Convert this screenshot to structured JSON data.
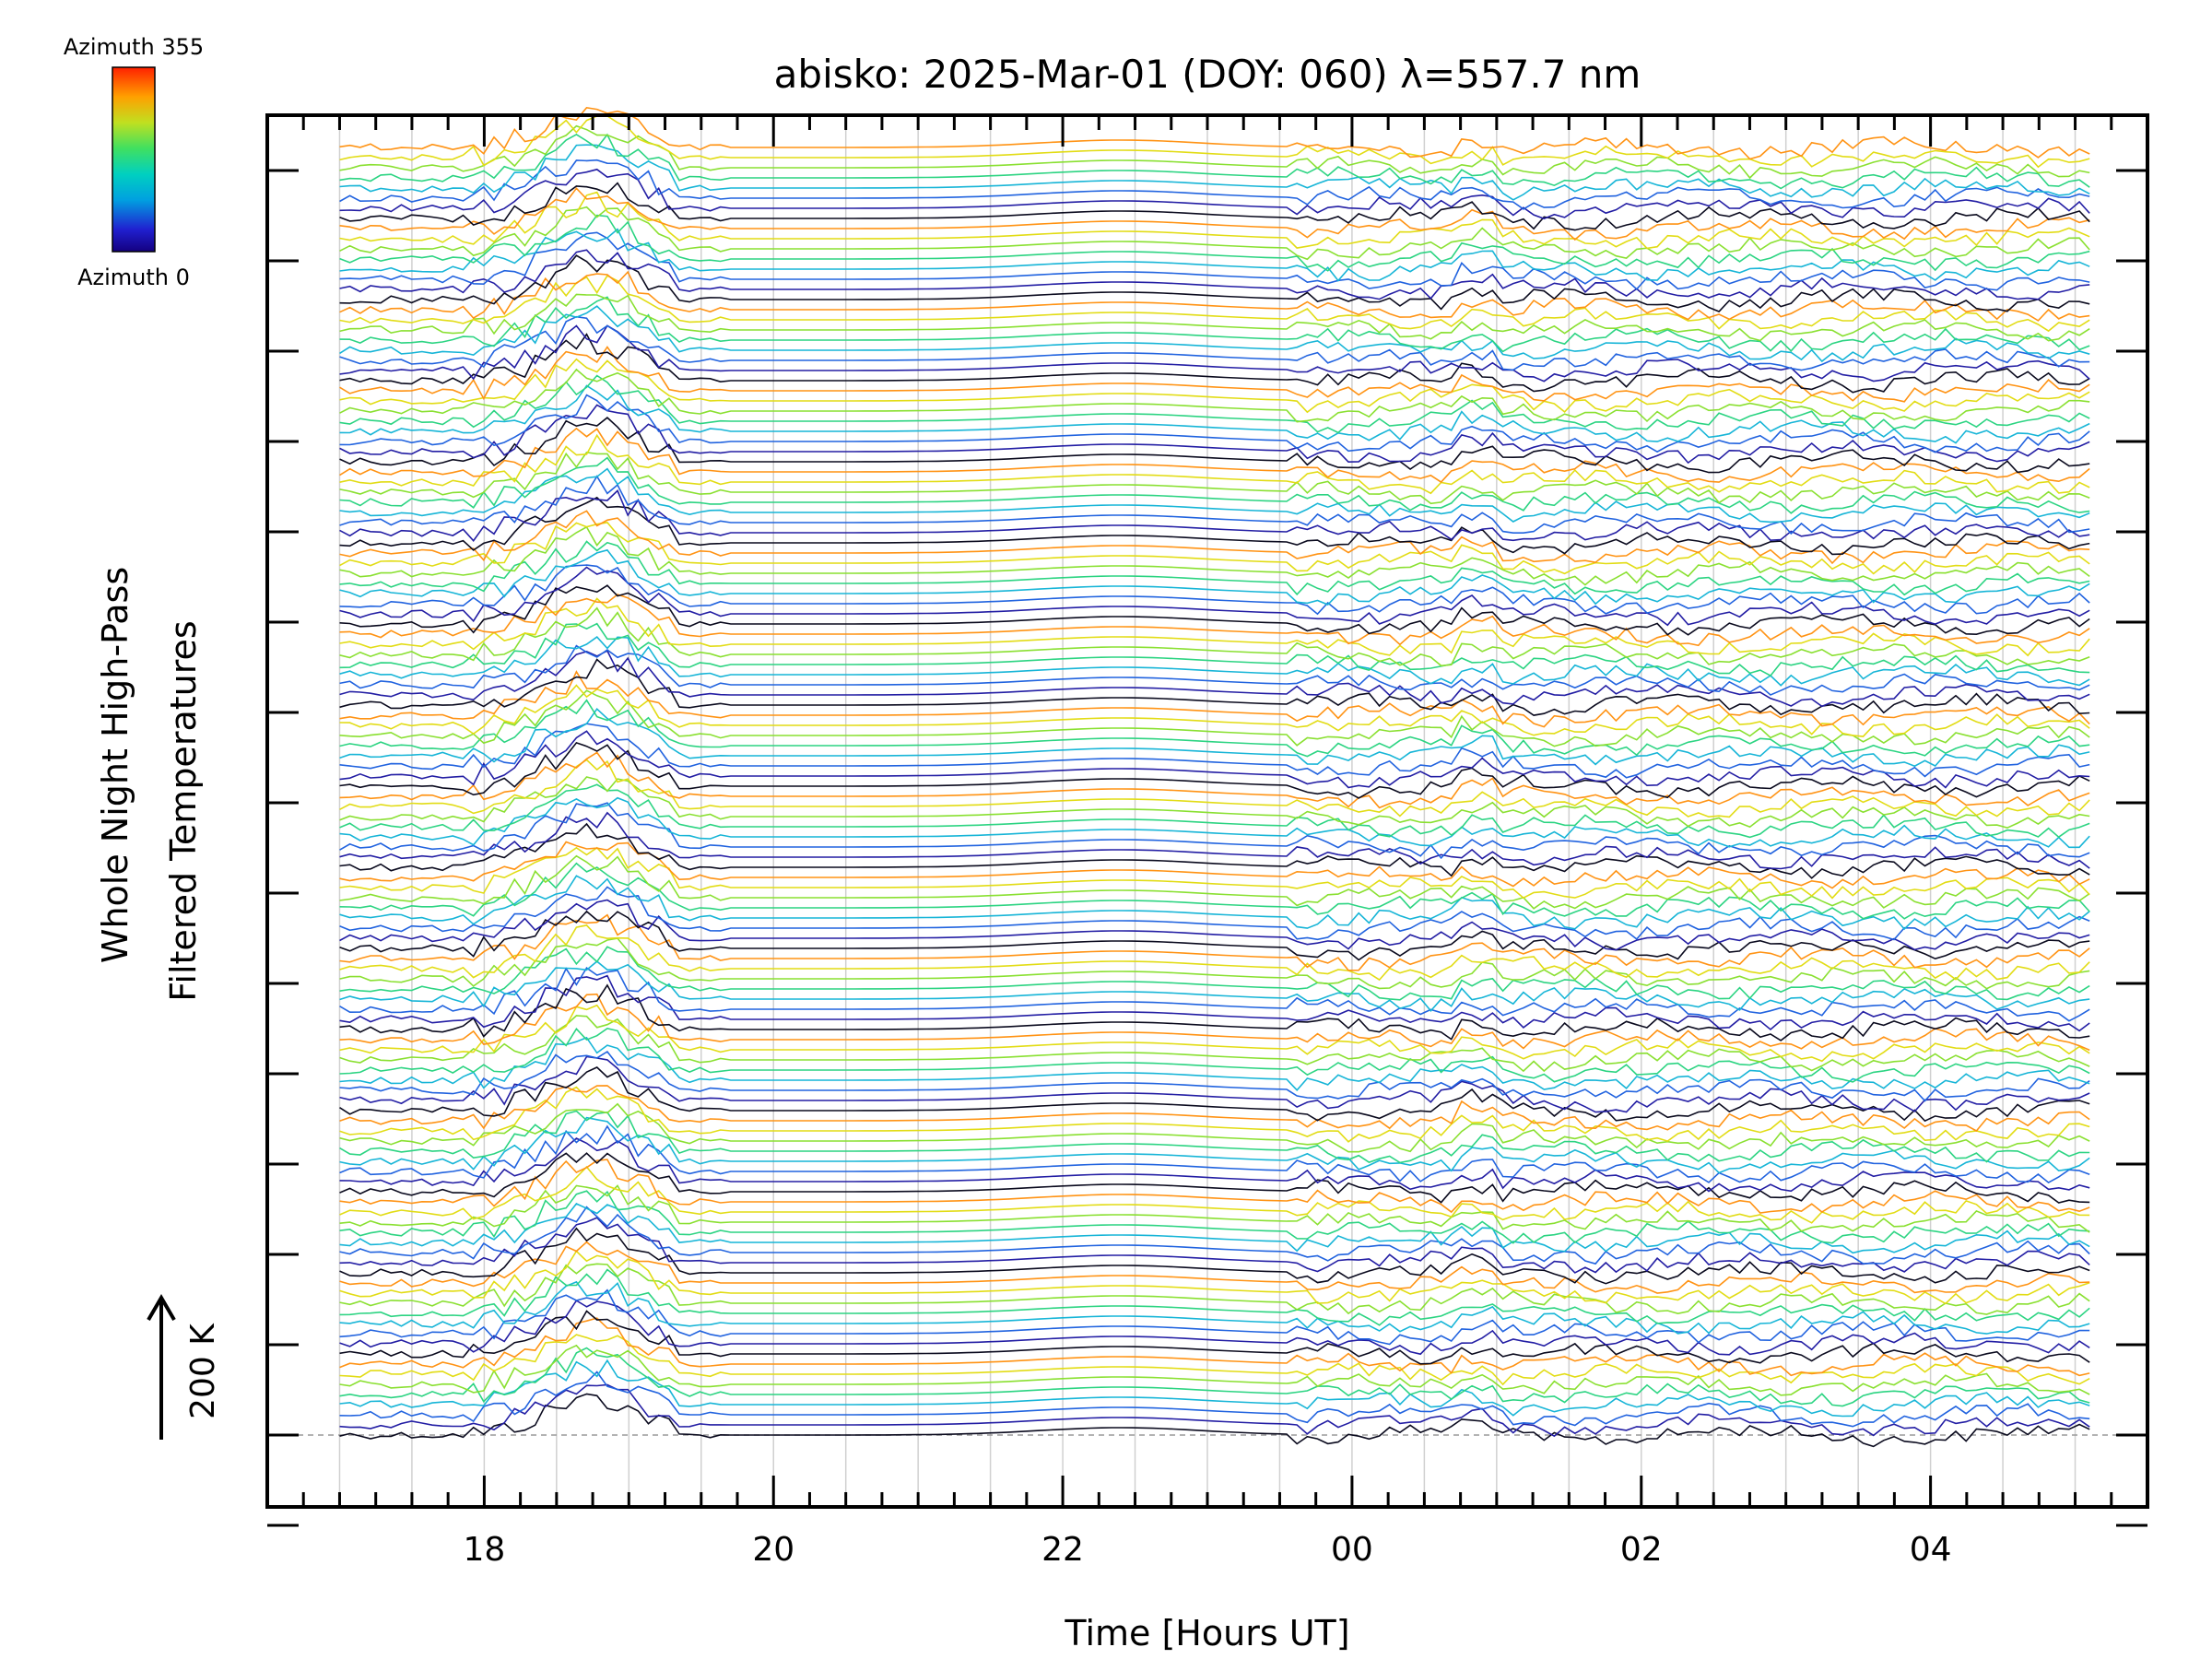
{
  "chart_data": {
    "type": "line",
    "title": "abisko: 2025-Mar-01 (DOY: 060) λ=557.7 nm",
    "xlabel": "Time [Hours UT]",
    "ylabel_line1": "Whole Night High-Pass",
    "ylabel_line2": "Filtered Temperatures",
    "x_ticks": [
      "18",
      "20",
      "22",
      "00",
      "02",
      "04"
    ],
    "x_tick_hours": [
      18,
      20,
      22,
      24,
      26,
      28
    ],
    "xlim": [
      16.5,
      29.5
    ],
    "data_x_range": [
      17.0,
      29.1
    ],
    "offset_scale_label": "200 K",
    "colorbar": {
      "label_top": "Azimuth 355",
      "label_bottom": "Azimuth 0",
      "min": 0,
      "max": 355,
      "colormap": "rainbow"
    },
    "n_traces": 128,
    "grid": true,
    "baseline_dashed": true,
    "colors": {
      "axis": "#000000",
      "grid": "#d0d0d0",
      "baseline": "#9a9a9a"
    }
  }
}
